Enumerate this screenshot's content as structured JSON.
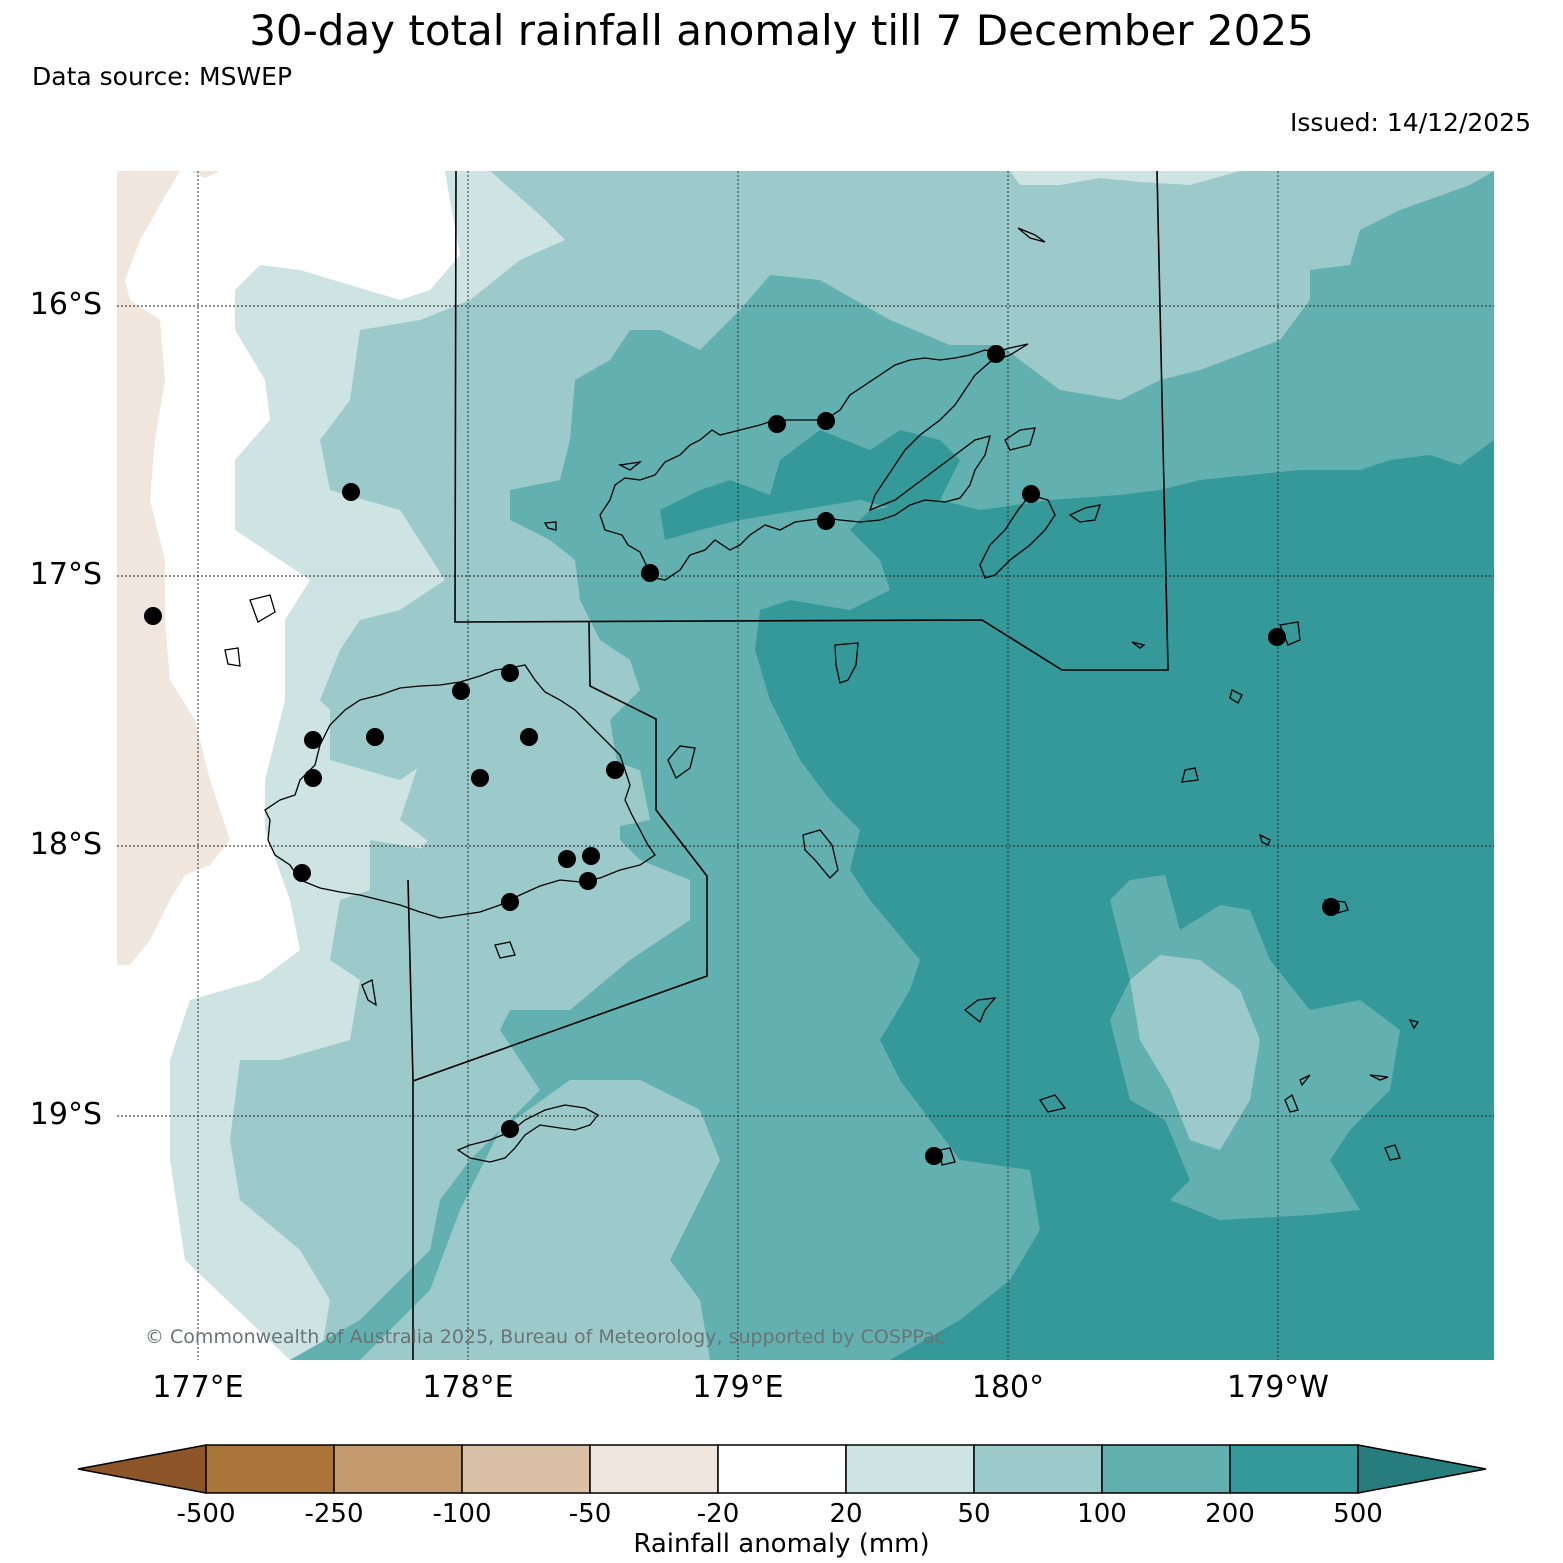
{
  "header": {
    "title": "30-day total rainfall anomaly till 7 December 2025",
    "source": "Data source: MSWEP",
    "issued": "Issued: 14/12/2025"
  },
  "map": {
    "lat_labels": [
      "16°S",
      "17°S",
      "18°S",
      "19°S"
    ],
    "lon_labels": [
      "177°E",
      "178°E",
      "179°E",
      "180°",
      "179°W"
    ],
    "copyright": "© Commonwealth of Australia 2025, Bureau of Meteorology, supported by COSPPac"
  },
  "colorbar": {
    "label": "Rainfall anomaly (mm)",
    "ticks": [
      "-500",
      "-250",
      "-100",
      "-50",
      "-20",
      "20",
      "50",
      "100",
      "200",
      "500"
    ],
    "colors": [
      "#8c5527",
      "#aa7539",
      "#c49b6f",
      "#dbc0a8",
      "#f0e6dd",
      "#ffffff",
      "#cde4e3",
      "#9ccacb",
      "#63b0b0",
      "#35999a",
      "#277d7e"
    ]
  }
}
